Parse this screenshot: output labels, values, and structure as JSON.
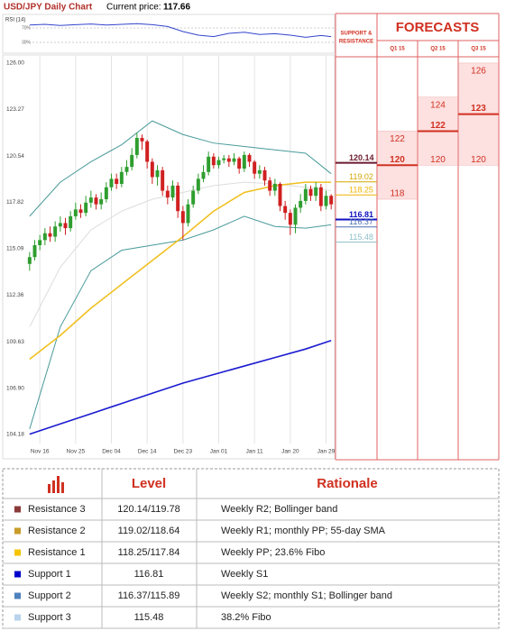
{
  "header": {
    "title": "USD/JPY Daily Chart",
    "price_label": "Current price:",
    "price": "117.66"
  },
  "chart_data": [
    {
      "type": "line",
      "title": "RSI (14)",
      "color": "#3344cc",
      "x": [
        0,
        3,
        6,
        9,
        12,
        15,
        18,
        21,
        24,
        27,
        30,
        33,
        36,
        39,
        42,
        45,
        48,
        51,
        54,
        57,
        59
      ],
      "values": [
        78,
        80,
        77,
        79,
        81,
        78,
        80,
        82,
        79,
        74,
        60,
        50,
        46,
        55,
        58,
        52,
        54,
        50,
        44,
        49,
        46
      ],
      "xlim": [
        0,
        59
      ],
      "ylim": [
        10,
        97.5
      ],
      "yticks": [
        {
          "value": 70,
          "label": "70%"
        },
        {
          "value": 30,
          "label": "30%"
        }
      ]
    },
    {
      "type": "candlestick",
      "up_color": "#2e9e2e",
      "down_color": "#d02020",
      "grid": "x",
      "categories": [
        null,
        null,
        "Nov 16",
        null,
        null,
        null,
        null,
        null,
        null,
        "Nov 25",
        null,
        null,
        null,
        null,
        null,
        null,
        "Dec 04",
        null,
        null,
        null,
        null,
        null,
        null,
        "Dec 14",
        null,
        null,
        null,
        null,
        null,
        null,
        "Dec 23",
        null,
        null,
        null,
        null,
        null,
        null,
        "Jan 01",
        null,
        null,
        null,
        null,
        null,
        null,
        "Jan 11",
        null,
        null,
        null,
        null,
        null,
        null,
        "Jan 20",
        null,
        null,
        null,
        null,
        null,
        null,
        "Jan 29",
        null
      ],
      "open": [
        114.2,
        114.6,
        115.3,
        115.6,
        116.0,
        115.8,
        116.4,
        116.6,
        116.3,
        117.0,
        117.4,
        117.2,
        117.8,
        118.1,
        117.7,
        118.0,
        118.7,
        119.2,
        118.9,
        119.6,
        119.9,
        120.6,
        121.6,
        121.4,
        120.2,
        119.3,
        119.7,
        118.5,
        118.1,
        118.8,
        117.3,
        116.6,
        117.7,
        118.5,
        119.2,
        119.6,
        120.5,
        120.0,
        120.3,
        120.4,
        120.2,
        120.4,
        119.8,
        120.6,
        120.2,
        119.5,
        119.7,
        119.1,
        118.5,
        118.9,
        117.6,
        117.2,
        116.5,
        117.5,
        117.9,
        118.6,
        118.2,
        118.7,
        117.6,
        118.2
      ],
      "high": [
        114.9,
        115.6,
        115.9,
        116.3,
        116.4,
        116.7,
        117.0,
        116.9,
        117.3,
        117.8,
        117.7,
        118.2,
        118.5,
        118.3,
        118.4,
        119.0,
        119.5,
        119.5,
        119.9,
        120.3,
        121.0,
        121.9,
        121.8,
        121.5,
        120.4,
        120.0,
        119.9,
        118.8,
        119.1,
        119.0,
        117.6,
        118.0,
        118.8,
        119.5,
        120.0,
        120.8,
        120.7,
        120.5,
        120.6,
        120.6,
        120.7,
        120.5,
        120.8,
        120.7,
        120.3,
        120.0,
        119.9,
        119.3,
        119.2,
        119.0,
        117.9,
        117.4,
        117.7,
        118.3,
        118.9,
        118.8,
        119.0,
        118.9,
        118.5,
        118.3
      ],
      "low": [
        113.8,
        114.4,
        115.0,
        115.3,
        115.5,
        115.5,
        116.1,
        115.9,
        116.1,
        116.8,
        116.9,
        117.0,
        117.5,
        117.4,
        117.4,
        117.8,
        118.5,
        118.6,
        118.7,
        119.4,
        119.7,
        120.4,
        120.9,
        119.8,
        118.9,
        118.8,
        118.2,
        117.7,
        117.9,
        116.9,
        115.6,
        116.4,
        117.5,
        118.3,
        119.0,
        119.4,
        119.8,
        119.8,
        120.1,
        119.9,
        120.0,
        119.5,
        119.6,
        119.9,
        119.2,
        119.2,
        118.8,
        118.2,
        118.2,
        117.3,
        116.8,
        115.9,
        116.0,
        117.2,
        117.7,
        117.9,
        117.9,
        117.3,
        117.4,
        117.4
      ],
      "close": [
        114.6,
        115.3,
        115.6,
        116.0,
        115.8,
        116.4,
        116.6,
        116.3,
        117.0,
        117.4,
        117.2,
        117.8,
        118.1,
        117.7,
        118.0,
        118.7,
        119.2,
        118.9,
        119.6,
        119.9,
        120.6,
        121.6,
        121.4,
        120.2,
        119.3,
        119.7,
        118.5,
        118.1,
        118.8,
        117.3,
        116.6,
        117.7,
        118.5,
        119.2,
        119.6,
        120.5,
        120.0,
        120.3,
        120.4,
        120.2,
        120.4,
        119.8,
        120.6,
        120.2,
        119.5,
        119.7,
        119.1,
        118.5,
        118.9,
        117.6,
        117.2,
        116.5,
        117.5,
        117.9,
        118.6,
        118.2,
        118.7,
        117.6,
        118.2,
        117.7
      ],
      "overlays": [
        {
          "color": "#dddddd",
          "x": [
            0,
            6,
            12,
            18,
            24,
            30,
            36,
            42,
            48,
            54,
            59
          ],
          "values": [
            110.5,
            114.0,
            116.2,
            117.3,
            118.0,
            118.4,
            118.8,
            119.0,
            118.9,
            118.7,
            118.5
          ]
        },
        {
          "color": "#4a9a9a",
          "x": [
            0,
            6,
            12,
            18,
            24,
            30,
            36,
            42,
            48,
            54,
            59
          ],
          "values": [
            117.0,
            119.0,
            120.2,
            121.2,
            122.6,
            121.8,
            121.3,
            121.1,
            120.9,
            120.7,
            119.5
          ]
        },
        {
          "color": "#4a9a9a",
          "x": [
            0,
            6,
            12,
            18,
            24,
            30,
            36,
            42,
            48,
            54,
            59
          ],
          "values": [
            104.5,
            110.5,
            113.8,
            115.0,
            115.3,
            115.6,
            116.2,
            117.0,
            116.4,
            116.3,
            116.5
          ]
        },
        {
          "color": "#f0c020",
          "x": [
            0,
            6,
            12,
            18,
            24,
            30,
            36,
            42,
            48,
            54,
            59
          ],
          "values": [
            108.6,
            110.0,
            111.6,
            113.0,
            114.4,
            115.8,
            117.3,
            118.4,
            118.8,
            119.0,
            119.0
          ]
        },
        {
          "color": "#1a1ad0",
          "x": [
            0,
            6,
            12,
            18,
            24,
            30,
            36,
            42,
            48,
            54,
            59
          ],
          "values": [
            104.2,
            104.8,
            105.4,
            106.0,
            106.6,
            107.2,
            107.7,
            108.2,
            108.7,
            109.2,
            109.7
          ]
        }
      ],
      "ylim": [
        103.65,
        126.42
      ],
      "yticks": [
        104.18,
        {
          "value": 106.9,
          "label": "106.90"
        },
        109.63,
        112.36,
        115.09,
        117.82,
        120.54,
        123.27,
        {
          "value": 126,
          "label": "126.00"
        }
      ]
    }
  ],
  "support_resistance": {
    "title_lines": [
      "SUPPORT &",
      "RESISTANCE"
    ],
    "levels": [
      {
        "value": 120.14,
        "color": "#6b1a2e"
      },
      {
        "value": 119.02,
        "color": "#d4a800"
      },
      {
        "value": 118.25,
        "color": "#f0b400"
      },
      {
        "value": 116.81,
        "color": "#1010c0"
      },
      {
        "value": 116.37,
        "color": "#4a6fb0"
      },
      {
        "value": 115.48,
        "color": "#8fc0c8"
      }
    ]
  },
  "forecasts": {
    "title": "FORECASTS",
    "columns": [
      {
        "label": "Q1 15",
        "high": 122,
        "mid": 120,
        "low": 118
      },
      {
        "label": "Q2 15",
        "high": 124,
        "mid": 122,
        "low": 120
      },
      {
        "label": "Q3 15",
        "high": 126,
        "mid": 123,
        "low": 120
      }
    ]
  },
  "table": {
    "header": {
      "level": "Level",
      "rationale": "Rationale"
    },
    "rows": [
      {
        "name": "Resistance 3",
        "color": "#8b3a3a",
        "level": "120.14/119.78",
        "rationale": "Weekly R2; Bollinger band"
      },
      {
        "name": "Resistance 2",
        "color": "#c89b2a",
        "level": "119.02/118.64",
        "rationale": "Weekly R1; monthly PP; 55-day SMA"
      },
      {
        "name": "Resistance 1",
        "color": "#f5c400",
        "level": "118.25/117.84",
        "rationale": "Weekly PP; 23.6% Fibo"
      },
      {
        "name": "Support 1",
        "color": "#0000cc",
        "level": "116.81",
        "rationale": "Weekly S1"
      },
      {
        "name": "Support 2",
        "color": "#4f81bd",
        "level": "116.37/115.89",
        "rationale": "Weekly S2; monthly S1; Bollinger band"
      },
      {
        "name": "Support 3",
        "color": "#b8d4ec",
        "level": "115.48",
        "rationale": "38.2% Fibo"
      }
    ]
  }
}
